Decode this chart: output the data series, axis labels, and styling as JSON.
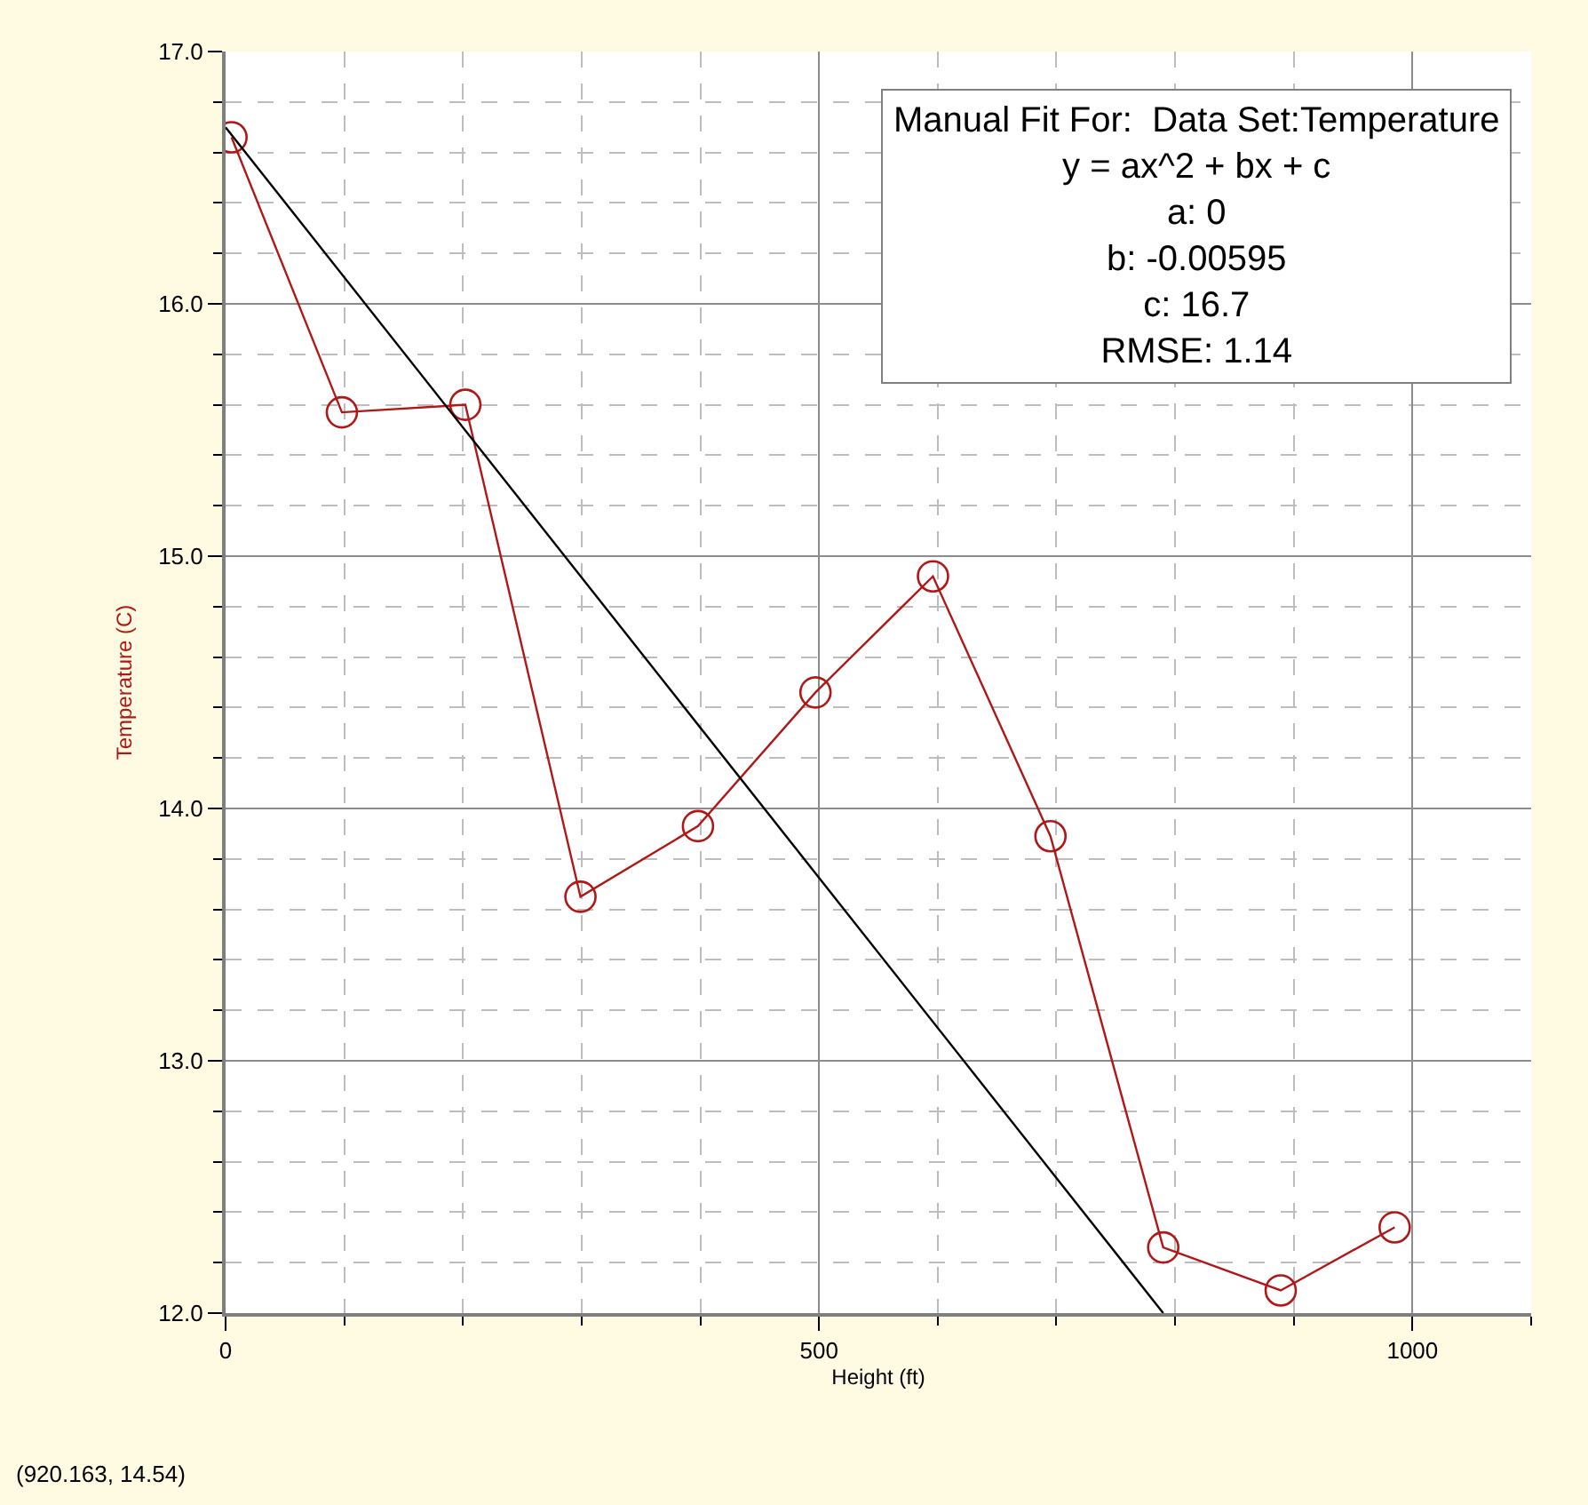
{
  "chart_data": {
    "type": "line",
    "xlabel": "Height (ft)",
    "ylabel": "Temperature (C)",
    "x": [
      5,
      98,
      202,
      299,
      398,
      497,
      596,
      695,
      790,
      889,
      985
    ],
    "series": [
      {
        "color": "#b01818",
        "marker": "circle",
        "values": [
          16.66,
          15.57,
          15.6,
          13.65,
          13.93,
          14.46,
          14.92,
          13.89,
          12.26,
          12.09,
          12.34
        ]
      },
      {
        "type": "line",
        "color": "#000000",
        "marker": "none",
        "x": [
          0,
          790
        ],
        "values": [
          16.7,
          12.0
        ]
      }
    ],
    "xlim": [
      0,
      1100
    ],
    "xticks": [
      0,
      500,
      1000
    ],
    "ylim": [
      12,
      17
    ],
    "yticks": [
      {
        "value": 12,
        "label": "12.0"
      },
      {
        "value": 13,
        "label": "13.0"
      },
      {
        "value": 14,
        "label": "14.0"
      },
      {
        "value": 15,
        "label": "15.0"
      },
      {
        "value": 16,
        "label": "16.0"
      },
      {
        "value": 17,
        "label": "17.0"
      }
    ],
    "grid": true,
    "legend": false,
    "annotations": [
      "Manual Fit For:  Data Set:Temperature\ny = ax^2 + bx + c\na: 0\nb: -0.00595\nc: 16.7\nRMSE: 1.14",
      "(920.163, 14.54)"
    ]
  }
}
